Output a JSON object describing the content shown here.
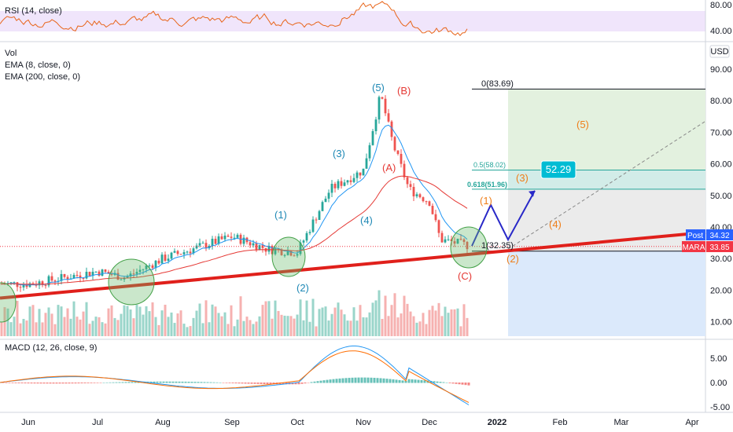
{
  "chart_data": {
    "type": "candlestick",
    "symbol": "MARA",
    "indicators": {
      "rsi": {
        "label": "RSI (14, close)",
        "ticks": [
          "80.00",
          "40.00"
        ]
      },
      "main": {
        "labels": [
          "Vol",
          "EMA (8, close, 0)",
          "EMA (200, close, 0)"
        ]
      },
      "macd": {
        "label": "MACD (12, 26, close, 9)",
        "ticks": [
          "5.00",
          "0.00",
          "-5.00"
        ]
      }
    },
    "currency": "USD",
    "y_ticks": [
      "90.00",
      "80.00",
      "70.00",
      "60.00",
      "50.00",
      "40.00",
      "30.00",
      "20.00",
      "10.00"
    ],
    "x_ticks": [
      "Jun",
      "Jul",
      "Aug",
      "Sep",
      "Oct",
      "Nov",
      "Dec",
      "2022",
      "Feb",
      "Mar",
      "Apr"
    ],
    "price_labels": [
      {
        "name": "Post",
        "value": "34.32",
        "color": "#2962ff"
      },
      {
        "name": "MARA",
        "value": "33.85",
        "color": "#f23645"
      }
    ],
    "fib_levels": [
      {
        "text": "0(83.69)",
        "value": 83.69,
        "color": "#131722"
      },
      {
        "text": "0.5(58.02)",
        "value": 58.02,
        "color": "#26a69a"
      },
      {
        "text": "0.618(51.96)",
        "value": 51.96,
        "color": "#26a69a"
      },
      {
        "text": "1(32.35)",
        "value": 32.35,
        "color": "#131722"
      }
    ],
    "target_callout": "52.29",
    "wave_labels_blue": [
      "(1)",
      "(2)",
      "(3)",
      "(4)",
      "(5)"
    ],
    "wave_labels_red": [
      "(A)",
      "(B)",
      "(C)"
    ],
    "wave_labels_orange": [
      "(1)",
      "(2)",
      "(3)",
      "(4)",
      "(5)"
    ],
    "price_series": [
      {
        "month": "Jun",
        "close": 22
      },
      {
        "month": "Jul",
        "close": 25
      },
      {
        "month": "Aug",
        "close": 31
      },
      {
        "month": "Sep",
        "close": 37
      },
      {
        "month": "Oct",
        "close": 33
      },
      {
        "month": "Nov",
        "close": 72
      },
      {
        "month": "Dec",
        "close": 48
      },
      {
        "month": "Dec",
        "close": 34
      }
    ]
  }
}
